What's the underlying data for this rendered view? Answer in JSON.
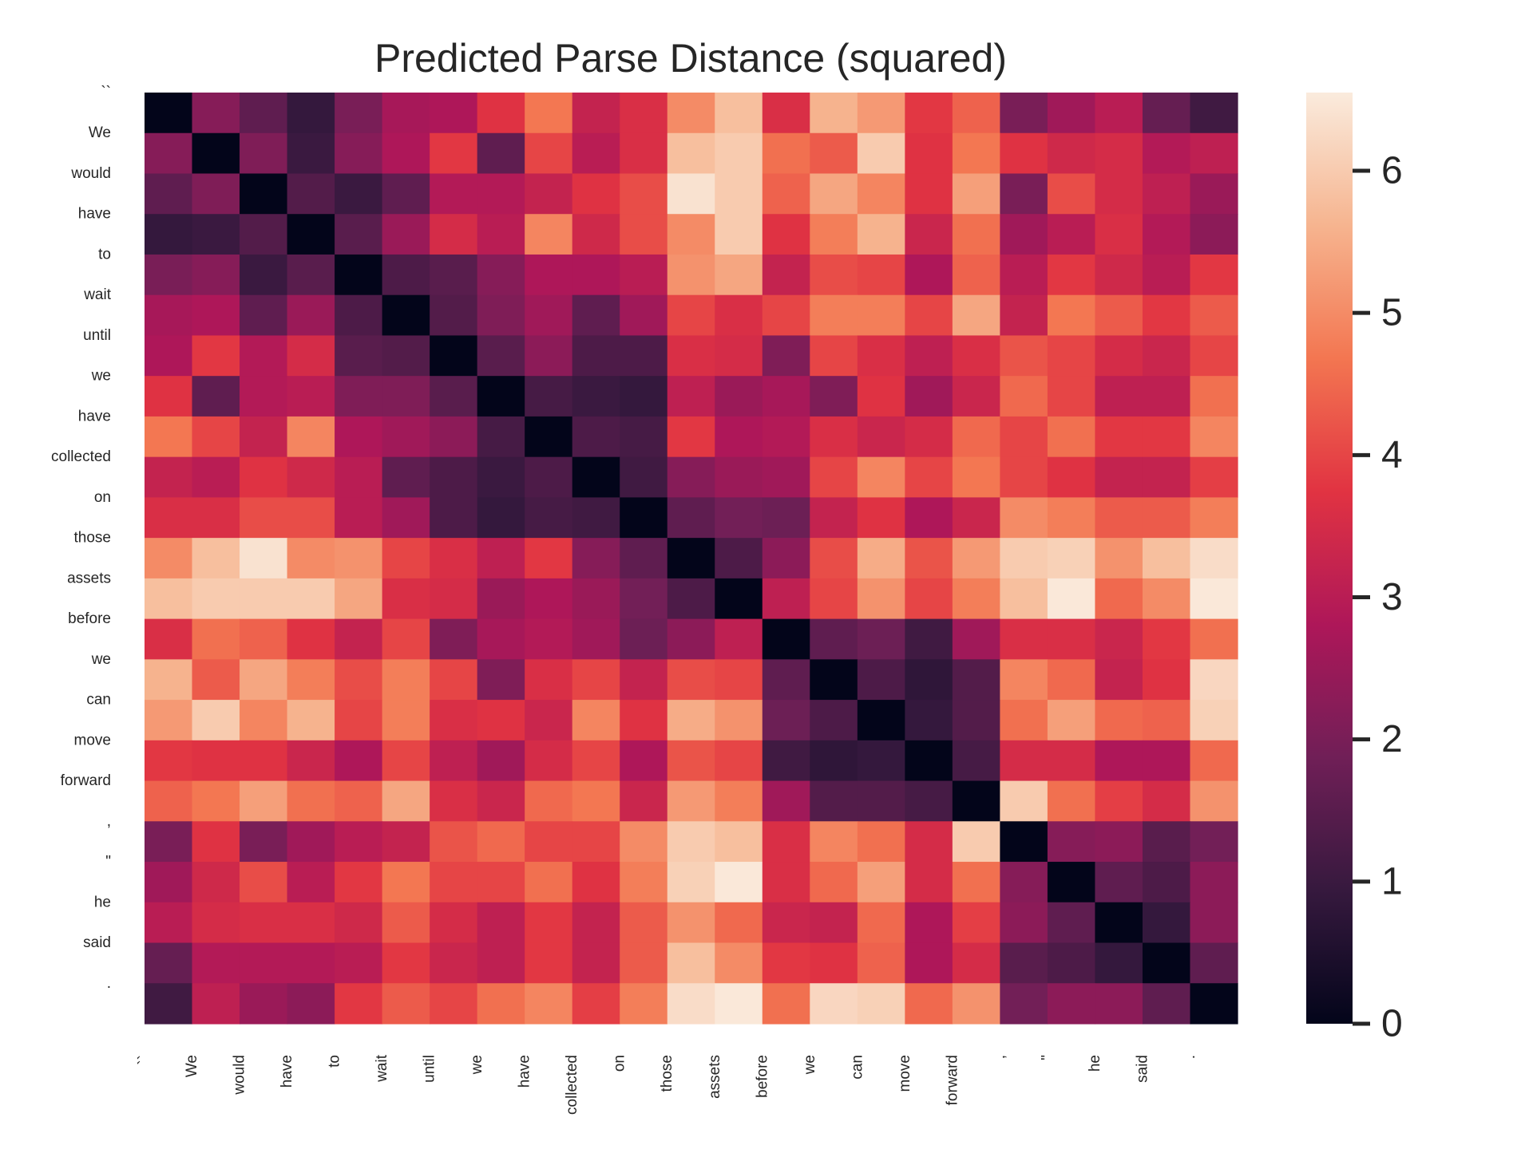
{
  "chart_data": {
    "type": "heatmap",
    "title": "Predicted Parse Distance (squared)",
    "xlabel": "",
    "ylabel": "",
    "tokens": [
      "``",
      "We",
      "would",
      "have",
      "to",
      "wait",
      "until",
      "we",
      "have",
      "collected",
      "on",
      "those",
      "assets",
      "before",
      "we",
      "can",
      "move",
      "forward",
      ",",
      "\"",
      "he",
      "said",
      "."
    ],
    "values": [
      [
        0.0,
        2.2,
        1.6,
        0.9,
        2.0,
        2.7,
        2.8,
        3.7,
        4.7,
        3.2,
        3.6,
        5.0,
        5.8,
        3.6,
        5.6,
        5.2,
        3.8,
        4.4,
        2.0,
        2.6,
        3.0,
        1.7,
        1.1
      ],
      [
        2.2,
        0.0,
        2.1,
        1.0,
        2.2,
        2.8,
        3.8,
        1.6,
        4.0,
        3.0,
        3.6,
        5.8,
        6.0,
        4.6,
        4.3,
        6.0,
        3.7,
        4.7,
        3.7,
        3.4,
        3.5,
        2.9,
        3.1
      ],
      [
        1.6,
        2.1,
        0.0,
        1.4,
        1.0,
        1.6,
        2.9,
        2.9,
        3.2,
        3.7,
        4.1,
        6.4,
        6.0,
        4.4,
        5.4,
        4.9,
        3.7,
        5.3,
        2.0,
        4.1,
        3.5,
        3.1,
        2.5
      ],
      [
        0.9,
        1.0,
        1.4,
        0.0,
        1.5,
        2.5,
        3.5,
        3.0,
        4.9,
        3.4,
        4.1,
        5.0,
        6.0,
        3.7,
        4.8,
        5.6,
        3.3,
        4.6,
        2.6,
        3.0,
        3.6,
        2.9,
        2.3
      ],
      [
        2.0,
        2.2,
        1.0,
        1.5,
        0.0,
        1.3,
        1.5,
        2.2,
        2.8,
        2.8,
        3.0,
        5.1,
        5.4,
        3.2,
        4.1,
        4.0,
        2.8,
        4.4,
        3.0,
        3.8,
        3.4,
        3.0,
        3.8
      ],
      [
        2.7,
        2.8,
        1.6,
        2.5,
        1.3,
        0.0,
        1.4,
        2.1,
        2.6,
        1.6,
        2.6,
        4.0,
        3.6,
        4.0,
        4.8,
        4.8,
        4.0,
        5.4,
        3.2,
        4.7,
        4.3,
        3.8,
        4.3
      ],
      [
        2.8,
        3.8,
        2.9,
        3.5,
        1.5,
        1.4,
        0.0,
        1.5,
        2.3,
        1.3,
        1.3,
        3.6,
        3.5,
        2.1,
        4.0,
        3.6,
        3.1,
        3.6,
        4.2,
        4.0,
        3.5,
        3.3,
        4.0
      ],
      [
        3.7,
        1.6,
        2.9,
        3.0,
        2.1,
        2.1,
        1.5,
        0.0,
        1.2,
        1.0,
        0.9,
        3.1,
        2.5,
        2.7,
        2.1,
        3.7,
        2.6,
        3.3,
        4.5,
        4.0,
        3.1,
        3.1,
        4.6
      ],
      [
        4.7,
        4.0,
        3.2,
        4.9,
        2.8,
        2.6,
        2.3,
        1.2,
        0.0,
        1.3,
        1.2,
        3.8,
        2.8,
        2.9,
        3.6,
        3.3,
        3.5,
        4.5,
        4.0,
        4.6,
        3.8,
        3.8,
        4.9
      ],
      [
        3.2,
        3.0,
        3.7,
        3.4,
        3.0,
        1.6,
        1.3,
        1.0,
        1.3,
        0.0,
        1.1,
        2.2,
        2.5,
        2.6,
        4.0,
        4.9,
        4.0,
        4.7,
        4.0,
        3.7,
        3.2,
        3.2,
        3.9
      ],
      [
        3.6,
        3.6,
        4.1,
        4.1,
        3.0,
        2.6,
        1.3,
        0.9,
        1.2,
        1.1,
        0.0,
        1.6,
        1.9,
        1.8,
        3.2,
        3.7,
        2.8,
        3.3,
        5.0,
        4.8,
        4.3,
        4.3,
        4.8
      ],
      [
        5.0,
        5.8,
        6.4,
        5.0,
        5.1,
        4.0,
        3.6,
        3.1,
        3.8,
        2.2,
        1.6,
        0.0,
        1.3,
        2.3,
        4.1,
        5.5,
        4.2,
        5.2,
        6.0,
        6.1,
        5.1,
        5.8,
        6.3
      ],
      [
        5.8,
        6.0,
        6.0,
        6.0,
        5.4,
        3.6,
        3.5,
        2.5,
        2.8,
        2.5,
        1.9,
        1.3,
        0.0,
        3.1,
        4.0,
        5.1,
        4.0,
        4.8,
        5.8,
        6.5,
        4.5,
        5.0,
        6.5
      ],
      [
        3.6,
        4.6,
        4.4,
        3.7,
        3.2,
        4.0,
        2.1,
        2.7,
        2.9,
        2.6,
        1.8,
        2.3,
        3.1,
        0.0,
        1.6,
        1.8,
        1.1,
        2.6,
        3.6,
        3.6,
        3.3,
        3.8,
        4.6
      ],
      [
        5.6,
        4.3,
        5.4,
        4.8,
        4.1,
        4.8,
        4.0,
        2.1,
        3.6,
        4.0,
        3.2,
        4.1,
        4.0,
        1.6,
        0.0,
        1.3,
        0.8,
        1.4,
        4.9,
        4.5,
        3.2,
        3.7,
        6.2
      ],
      [
        5.2,
        6.0,
        4.9,
        5.6,
        4.0,
        4.8,
        3.6,
        3.7,
        3.3,
        4.9,
        3.7,
        5.5,
        5.1,
        1.8,
        1.3,
        0.0,
        0.9,
        1.4,
        4.6,
        5.3,
        4.5,
        4.4,
        6.1
      ],
      [
        3.8,
        3.7,
        3.7,
        3.3,
        2.8,
        4.0,
        3.1,
        2.6,
        3.5,
        4.0,
        2.8,
        4.2,
        4.0,
        1.1,
        0.8,
        0.9,
        0.0,
        1.2,
        3.5,
        3.5,
        2.8,
        2.8,
        4.5
      ],
      [
        4.4,
        4.7,
        5.3,
        4.6,
        4.4,
        5.4,
        3.6,
        3.3,
        4.5,
        4.7,
        3.3,
        5.2,
        4.8,
        2.6,
        1.4,
        1.4,
        1.2,
        0.0,
        6.0,
        4.6,
        3.9,
        3.5,
        5.1
      ],
      [
        2.0,
        3.7,
        2.0,
        2.6,
        3.0,
        3.2,
        4.2,
        4.5,
        4.0,
        4.0,
        5.0,
        6.0,
        5.8,
        3.6,
        4.9,
        4.6,
        3.5,
        6.0,
        0.0,
        2.2,
        2.3,
        1.5,
        1.9
      ],
      [
        2.6,
        3.4,
        4.1,
        3.0,
        3.8,
        4.7,
        4.0,
        4.0,
        4.6,
        3.7,
        4.8,
        6.1,
        6.5,
        3.6,
        4.5,
        5.3,
        3.5,
        4.6,
        2.2,
        0.0,
        1.6,
        1.3,
        2.3
      ],
      [
        3.0,
        3.5,
        3.6,
        3.6,
        3.4,
        4.3,
        3.5,
        3.1,
        3.8,
        3.2,
        4.3,
        5.1,
        4.5,
        3.3,
        3.2,
        4.5,
        2.8,
        3.9,
        2.3,
        1.6,
        0.0,
        0.9,
        2.3
      ],
      [
        1.7,
        2.9,
        2.9,
        2.9,
        3.0,
        3.8,
        3.3,
        3.1,
        3.8,
        3.2,
        4.3,
        5.8,
        5.0,
        3.8,
        3.7,
        4.4,
        2.8,
        3.5,
        1.5,
        1.3,
        0.9,
        0.0,
        1.6
      ],
      [
        1.1,
        3.1,
        2.5,
        2.3,
        3.8,
        4.3,
        4.0,
        4.6,
        4.9,
        3.9,
        4.8,
        6.3,
        6.5,
        4.6,
        6.2,
        6.1,
        4.5,
        5.1,
        1.9,
        2.3,
        2.3,
        1.6,
        0.0
      ]
    ],
    "colorbar": {
      "min": 0,
      "max": 6.55,
      "ticks": [
        0,
        1,
        2,
        3,
        4,
        5,
        6
      ],
      "colormap": "rocket",
      "stops": [
        "#03051a",
        "#36193e",
        "#701f57",
        "#ae1759",
        "#e13342",
        "#f37651",
        "#f6b48f",
        "#faebdd"
      ]
    },
    "grid": false,
    "legend": "colorbar-right"
  }
}
